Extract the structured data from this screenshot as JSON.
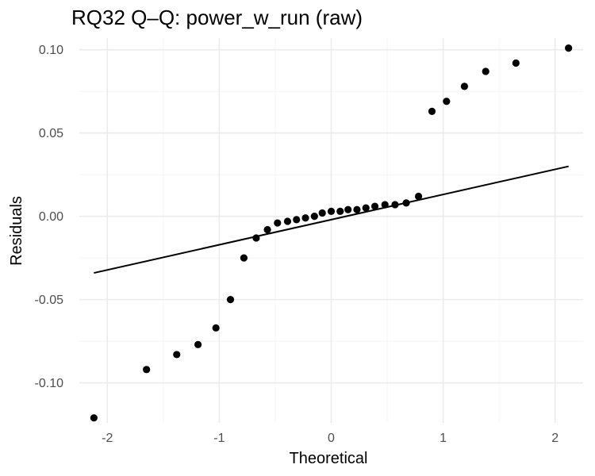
{
  "chart_data": {
    "type": "scatter",
    "title": "RQ32 Q–Q: power_w_run (raw)",
    "xlabel": "Theoretical",
    "ylabel": "Residuals",
    "xlim": [
      -2.25,
      2.25
    ],
    "ylim": [
      -0.124,
      0.107
    ],
    "x_ticks": [
      -2,
      -1,
      0,
      1,
      2
    ],
    "x_tick_labels": [
      "-2",
      "-1",
      "0",
      "1",
      "2"
    ],
    "y_ticks": [
      -0.1,
      -0.05,
      0.0,
      0.05,
      0.1
    ],
    "y_tick_labels": [
      "-0.10",
      "-0.05",
      "0.00",
      "0.05",
      "0.10"
    ],
    "grid": true,
    "points": {
      "x": [
        -2.12,
        -1.65,
        -1.38,
        -1.19,
        -1.03,
        -0.9,
        -0.78,
        -0.67,
        -0.57,
        -0.48,
        -0.39,
        -0.31,
        -0.23,
        -0.15,
        -0.08,
        0.0,
        0.08,
        0.15,
        0.23,
        0.31,
        0.39,
        0.48,
        0.57,
        0.67,
        0.78,
        0.9,
        1.03,
        1.19,
        1.38,
        1.65,
        2.12
      ],
      "y": [
        -0.121,
        -0.092,
        -0.083,
        -0.077,
        -0.067,
        -0.05,
        -0.025,
        -0.013,
        -0.008,
        -0.004,
        -0.003,
        -0.002,
        -0.001,
        0.0,
        0.002,
        0.003,
        0.003,
        0.004,
        0.004,
        0.005,
        0.006,
        0.007,
        0.007,
        0.008,
        0.012,
        0.063,
        0.069,
        0.078,
        0.087,
        0.092,
        0.101
      ]
    },
    "reference_line": {
      "x": [
        -2.12,
        2.12
      ],
      "y": [
        -0.034,
        0.03
      ]
    }
  }
}
